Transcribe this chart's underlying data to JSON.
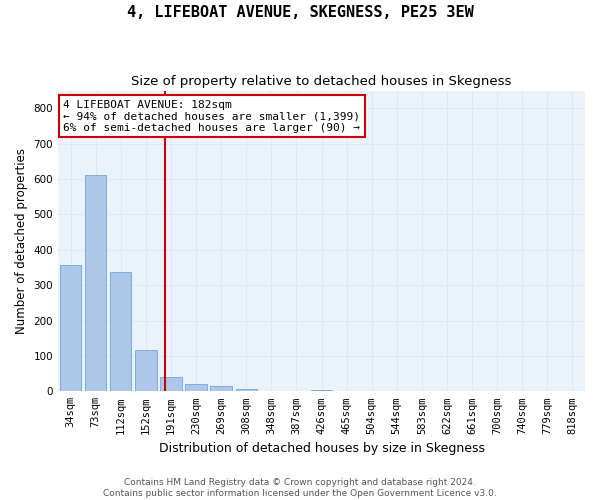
{
  "title": "4, LIFEBOAT AVENUE, SKEGNESS, PE25 3EW",
  "subtitle": "Size of property relative to detached houses in Skegness",
  "xlabel": "Distribution of detached houses by size in Skegness",
  "ylabel": "Number of detached properties",
  "categories": [
    "34sqm",
    "73sqm",
    "112sqm",
    "152sqm",
    "191sqm",
    "230sqm",
    "269sqm",
    "308sqm",
    "348sqm",
    "387sqm",
    "426sqm",
    "465sqm",
    "504sqm",
    "544sqm",
    "583sqm",
    "622sqm",
    "661sqm",
    "700sqm",
    "740sqm",
    "779sqm",
    "818sqm"
  ],
  "values": [
    357,
    611,
    338,
    116,
    40,
    20,
    15,
    7,
    2,
    0,
    3,
    0,
    0,
    0,
    0,
    0,
    0,
    0,
    0,
    0,
    2
  ],
  "bar_color": "#aec6e8",
  "bar_edge_color": "#5a9fd4",
  "grid_color": "#dce8f5",
  "background_color": "#eaf3fb",
  "vline_color": "#cc0000",
  "annotation_line1": "4 LIFEBOAT AVENUE: 182sqm",
  "annotation_line2": "← 94% of detached houses are smaller (1,399)",
  "annotation_line3": "6% of semi-detached houses are larger (90) →",
  "annotation_box_color": "#cc0000",
  "footer_line1": "Contains HM Land Registry data © Crown copyright and database right 2024.",
  "footer_line2": "Contains public sector information licensed under the Open Government Licence v3.0.",
  "ylim": [
    0,
    850
  ],
  "title_fontsize": 11,
  "subtitle_fontsize": 9.5,
  "xlabel_fontsize": 9,
  "ylabel_fontsize": 8.5,
  "tick_fontsize": 7.5,
  "annotation_fontsize": 8,
  "footer_fontsize": 6.5
}
